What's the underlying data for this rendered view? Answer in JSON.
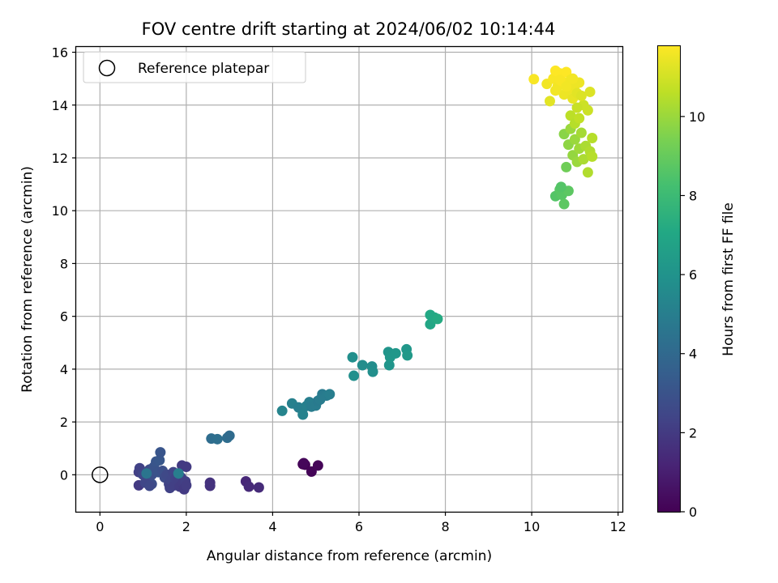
{
  "chart_data": {
    "type": "scatter",
    "title": "FOV centre drift starting at 2024/06/02 10:14:44",
    "xlabel": "Angular distance from reference (arcmin)",
    "ylabel": "Rotation from reference (arcmin)",
    "xlim": [
      -0.55,
      12.1
    ],
    "ylim": [
      -1.4,
      16.2
    ],
    "xticks": [
      0,
      2,
      4,
      6,
      8,
      10,
      12
    ],
    "yticks": [
      0,
      2,
      4,
      6,
      8,
      10,
      12,
      14,
      16
    ],
    "grid": true,
    "legend": {
      "position": "top-left",
      "label": "Reference platepar"
    },
    "reference_point": {
      "x": 0,
      "y": 0
    },
    "colorbar": {
      "label": "Hours from first FF file",
      "range": [
        0,
        11.8
      ],
      "ticks": [
        0,
        2,
        4,
        6,
        8,
        10
      ],
      "colormap": "viridis"
    },
    "points": [
      {
        "x": 4.7,
        "y": 0.4,
        "t": 0.0
      },
      {
        "x": 4.75,
        "y": 0.38,
        "t": 0.05
      },
      {
        "x": 4.9,
        "y": 0.12,
        "t": 0.1
      },
      {
        "x": 5.05,
        "y": 0.35,
        "t": 0.15
      },
      {
        "x": 4.72,
        "y": 0.44,
        "t": 0.2
      },
      {
        "x": 3.38,
        "y": -0.25,
        "t": 1.3
      },
      {
        "x": 3.45,
        "y": -0.45,
        "t": 1.4
      },
      {
        "x": 3.68,
        "y": -0.48,
        "t": 1.45
      },
      {
        "x": 2.55,
        "y": -0.3,
        "t": 1.7
      },
      {
        "x": 2.55,
        "y": -0.42,
        "t": 1.75
      },
      {
        "x": 0.9,
        "y": -0.4,
        "t": 2.0
      },
      {
        "x": 0.9,
        "y": 0.1,
        "t": 2.2
      },
      {
        "x": 0.92,
        "y": 0.25,
        "t": 2.3
      },
      {
        "x": 1.0,
        "y": 0.0,
        "t": 2.5
      },
      {
        "x": 1.05,
        "y": 0.1,
        "t": 2.4
      },
      {
        "x": 1.1,
        "y": -0.1,
        "t": 2.6
      },
      {
        "x": 1.15,
        "y": 0.2,
        "t": 2.7
      },
      {
        "x": 1.2,
        "y": -0.35,
        "t": 2.8
      },
      {
        "x": 1.2,
        "y": 0.0,
        "t": 2.9
      },
      {
        "x": 1.25,
        "y": 0.3,
        "t": 3.0
      },
      {
        "x": 1.3,
        "y": 0.5,
        "t": 3.1
      },
      {
        "x": 1.35,
        "y": 0.1,
        "t": 3.0
      },
      {
        "x": 1.38,
        "y": 0.55,
        "t": 3.2
      },
      {
        "x": 1.4,
        "y": 0.85,
        "t": 3.1
      },
      {
        "x": 1.45,
        "y": 0.15,
        "t": 2.9
      },
      {
        "x": 1.5,
        "y": -0.1,
        "t": 2.7
      },
      {
        "x": 1.55,
        "y": 0.0,
        "t": 2.6
      },
      {
        "x": 1.6,
        "y": -0.35,
        "t": 2.4
      },
      {
        "x": 1.62,
        "y": -0.5,
        "t": 2.3
      },
      {
        "x": 1.65,
        "y": -0.2,
        "t": 2.5
      },
      {
        "x": 1.7,
        "y": 0.1,
        "t": 2.4
      },
      {
        "x": 1.72,
        "y": -0.4,
        "t": 2.2
      },
      {
        "x": 1.75,
        "y": -0.15,
        "t": 2.3
      },
      {
        "x": 1.8,
        "y": -0.25,
        "t": 2.2
      },
      {
        "x": 1.85,
        "y": -0.45,
        "t": 2.1
      },
      {
        "x": 1.88,
        "y": -0.1,
        "t": 2.3
      },
      {
        "x": 1.9,
        "y": 0.35,
        "t": 2.0
      },
      {
        "x": 1.92,
        "y": -0.3,
        "t": 2.1
      },
      {
        "x": 1.95,
        "y": -0.55,
        "t": 2.0
      },
      {
        "x": 1.98,
        "y": -0.25,
        "t": 2.2
      },
      {
        "x": 2.0,
        "y": -0.4,
        "t": 2.1
      },
      {
        "x": 2.0,
        "y": 0.3,
        "t": 2.0
      },
      {
        "x": 1.05,
        "y": -0.3,
        "t": 2.5
      },
      {
        "x": 1.15,
        "y": -0.42,
        "t": 2.6
      },
      {
        "x": 1.82,
        "y": 0.05,
        "t": 5.0
      },
      {
        "x": 1.08,
        "y": 0.05,
        "t": 4.6
      },
      {
        "x": 2.58,
        "y": 1.37,
        "t": 4.2
      },
      {
        "x": 2.72,
        "y": 1.35,
        "t": 4.3
      },
      {
        "x": 2.95,
        "y": 1.4,
        "t": 4.2
      },
      {
        "x": 3.0,
        "y": 1.48,
        "t": 4.1
      },
      {
        "x": 4.22,
        "y": 2.42,
        "t": 5.3
      },
      {
        "x": 4.45,
        "y": 2.7,
        "t": 5.1
      },
      {
        "x": 4.6,
        "y": 2.55,
        "t": 5.0
      },
      {
        "x": 4.7,
        "y": 2.28,
        "t": 5.2
      },
      {
        "x": 4.78,
        "y": 2.6,
        "t": 5.1
      },
      {
        "x": 4.85,
        "y": 2.75,
        "t": 5.0
      },
      {
        "x": 4.9,
        "y": 2.58,
        "t": 4.9
      },
      {
        "x": 5.0,
        "y": 2.62,
        "t": 4.9
      },
      {
        "x": 5.05,
        "y": 2.8,
        "t": 4.8
      },
      {
        "x": 5.15,
        "y": 3.05,
        "t": 4.8
      },
      {
        "x": 5.25,
        "y": 3.0,
        "t": 4.9
      },
      {
        "x": 5.32,
        "y": 3.05,
        "t": 5.0
      },
      {
        "x": 5.1,
        "y": 2.85,
        "t": 4.9
      },
      {
        "x": 5.85,
        "y": 4.45,
        "t": 5.8
      },
      {
        "x": 5.88,
        "y": 3.75,
        "t": 5.8
      },
      {
        "x": 6.08,
        "y": 4.15,
        "t": 5.7
      },
      {
        "x": 6.3,
        "y": 4.1,
        "t": 5.7
      },
      {
        "x": 6.32,
        "y": 3.9,
        "t": 5.8
      },
      {
        "x": 6.68,
        "y": 4.65,
        "t": 6.1
      },
      {
        "x": 6.7,
        "y": 4.15,
        "t": 6.1
      },
      {
        "x": 6.72,
        "y": 4.45,
        "t": 6.2
      },
      {
        "x": 6.85,
        "y": 4.6,
        "t": 6.2
      },
      {
        "x": 7.1,
        "y": 4.75,
        "t": 6.2
      },
      {
        "x": 7.12,
        "y": 4.52,
        "t": 6.3
      },
      {
        "x": 7.65,
        "y": 6.05,
        "t": 7.1
      },
      {
        "x": 7.65,
        "y": 5.7,
        "t": 7.0
      },
      {
        "x": 7.75,
        "y": 5.95,
        "t": 7.1
      },
      {
        "x": 7.82,
        "y": 5.9,
        "t": 7.2
      },
      {
        "x": 10.55,
        "y": 10.55,
        "t": 8.6
      },
      {
        "x": 10.65,
        "y": 10.8,
        "t": 8.7
      },
      {
        "x": 10.7,
        "y": 10.6,
        "t": 8.7
      },
      {
        "x": 10.75,
        "y": 10.25,
        "t": 8.8
      },
      {
        "x": 10.85,
        "y": 10.75,
        "t": 8.8
      },
      {
        "x": 10.68,
        "y": 10.9,
        "t": 8.6
      },
      {
        "x": 10.8,
        "y": 11.65,
        "t": 9.2
      },
      {
        "x": 10.75,
        "y": 12.9,
        "t": 9.7
      },
      {
        "x": 10.85,
        "y": 12.5,
        "t": 9.8
      },
      {
        "x": 10.9,
        "y": 13.1,
        "t": 10.0
      },
      {
        "x": 10.95,
        "y": 12.1,
        "t": 9.9
      },
      {
        "x": 11.0,
        "y": 12.7,
        "t": 10.0
      },
      {
        "x": 11.05,
        "y": 11.85,
        "t": 10.0
      },
      {
        "x": 11.1,
        "y": 12.35,
        "t": 10.1
      },
      {
        "x": 11.15,
        "y": 12.95,
        "t": 10.2
      },
      {
        "x": 11.2,
        "y": 11.95,
        "t": 10.3
      },
      {
        "x": 11.25,
        "y": 12.45,
        "t": 10.3
      },
      {
        "x": 11.3,
        "y": 11.45,
        "t": 10.4
      },
      {
        "x": 11.35,
        "y": 12.25,
        "t": 10.4
      },
      {
        "x": 11.4,
        "y": 12.75,
        "t": 10.5
      },
      {
        "x": 11.4,
        "y": 12.05,
        "t": 10.5
      },
      {
        "x": 11.3,
        "y": 13.8,
        "t": 10.9
      },
      {
        "x": 11.35,
        "y": 14.5,
        "t": 11.2
      },
      {
        "x": 10.9,
        "y": 13.6,
        "t": 10.6
      },
      {
        "x": 11.0,
        "y": 13.3,
        "t": 10.5
      },
      {
        "x": 11.1,
        "y": 13.5,
        "t": 10.7
      },
      {
        "x": 11.2,
        "y": 14.0,
        "t": 10.9
      },
      {
        "x": 11.05,
        "y": 13.9,
        "t": 10.8
      },
      {
        "x": 10.05,
        "y": 14.98,
        "t": 11.7
      },
      {
        "x": 10.35,
        "y": 14.8,
        "t": 11.6
      },
      {
        "x": 10.42,
        "y": 14.15,
        "t": 11.3
      },
      {
        "x": 10.5,
        "y": 15.0,
        "t": 11.7
      },
      {
        "x": 10.55,
        "y": 15.3,
        "t": 11.8
      },
      {
        "x": 10.6,
        "y": 14.7,
        "t": 11.6
      },
      {
        "x": 10.65,
        "y": 15.2,
        "t": 11.8
      },
      {
        "x": 10.7,
        "y": 14.9,
        "t": 11.7
      },
      {
        "x": 10.75,
        "y": 14.4,
        "t": 11.5
      },
      {
        "x": 10.8,
        "y": 15.25,
        "t": 11.8
      },
      {
        "x": 10.85,
        "y": 14.6,
        "t": 11.5
      },
      {
        "x": 10.9,
        "y": 14.95,
        "t": 11.6
      },
      {
        "x": 10.95,
        "y": 14.25,
        "t": 11.4
      },
      {
        "x": 11.0,
        "y": 14.75,
        "t": 11.5
      },
      {
        "x": 11.05,
        "y": 14.45,
        "t": 11.3
      },
      {
        "x": 11.1,
        "y": 14.85,
        "t": 11.5
      },
      {
        "x": 11.15,
        "y": 14.35,
        "t": 11.2
      },
      {
        "x": 10.55,
        "y": 14.55,
        "t": 11.6
      },
      {
        "x": 10.65,
        "y": 14.95,
        "t": 11.7
      },
      {
        "x": 10.8,
        "y": 14.7,
        "t": 11.6
      },
      {
        "x": 10.95,
        "y": 15.0,
        "t": 11.6
      }
    ]
  }
}
